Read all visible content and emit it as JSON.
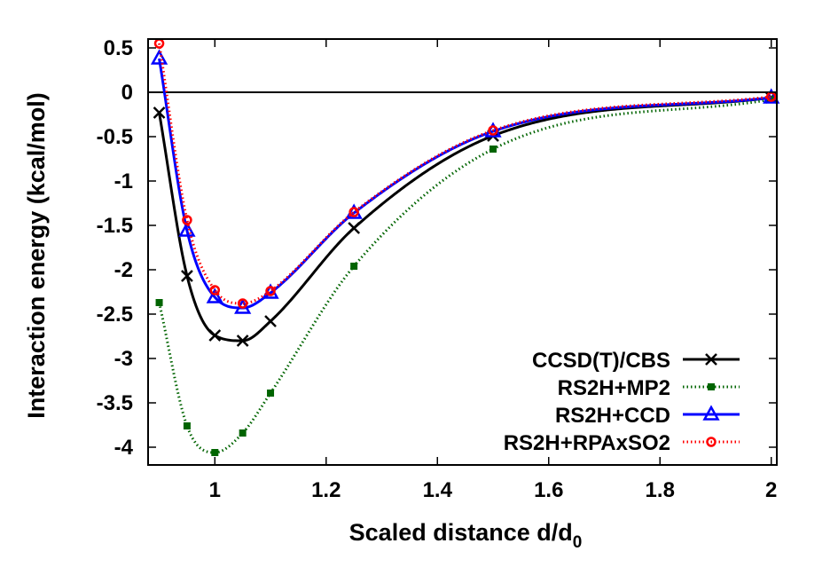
{
  "chart_data": {
    "type": "line",
    "xlabel": "Scaled distance d/d",
    "xlabel_subscript": "0",
    "ylabel": "Interaction energy (kcal/mol)",
    "xlim": [
      0.88,
      2.01
    ],
    "ylim": [
      -4.2,
      0.6
    ],
    "x_ticks": [
      1,
      1.2,
      1.4,
      1.6,
      1.8,
      2
    ],
    "x_tick_labels": [
      "1",
      "1.2",
      "1.4",
      "1.6",
      "1.8",
      "2"
    ],
    "y_ticks": [
      0.5,
      0,
      -0.5,
      -1,
      -1.5,
      -2,
      -2.5,
      -3,
      -3.5,
      -4
    ],
    "y_tick_labels": [
      "0.5",
      "0",
      "-0.5",
      "-1",
      "-1.5",
      "-2",
      "-2.5",
      "-3",
      "-3.5",
      "-4"
    ],
    "grid": false,
    "legend_position": "bottom-right",
    "zero_line": true,
    "series": [
      {
        "name": "CCSD(T)/CBS",
        "color": "#000000",
        "line_style": "solid",
        "marker": "cross",
        "x": [
          0.9,
          0.95,
          1.0,
          1.05,
          1.1,
          1.25,
          1.5,
          2.0
        ],
        "y": [
          -0.23,
          -2.07,
          -2.74,
          -2.8,
          -2.58,
          -1.53,
          -0.49,
          -0.06
        ]
      },
      {
        "name": "RS2H+MP2",
        "color": "#006400",
        "line_style": "dotted",
        "marker": "square",
        "x": [
          0.9,
          0.95,
          1.0,
          1.05,
          1.1,
          1.25,
          1.5,
          2.0
        ],
        "y": [
          -2.37,
          -3.76,
          -4.06,
          -3.84,
          -3.39,
          -1.96,
          -0.64,
          -0.08
        ]
      },
      {
        "name": "RS2H+CCD",
        "color": "#0000ff",
        "line_style": "solid",
        "marker": "triangle",
        "x": [
          0.9,
          0.95,
          1.0,
          1.05,
          1.1,
          1.25,
          1.5,
          2.0
        ],
        "y": [
          0.38,
          -1.56,
          -2.31,
          -2.43,
          -2.26,
          -1.36,
          -0.44,
          -0.06
        ]
      },
      {
        "name": "RS2H+RPAxSO2",
        "color": "#ff0000",
        "line_style": "dotted",
        "marker": "circle",
        "x": [
          0.9,
          0.95,
          1.0,
          1.05,
          1.1,
          1.25,
          1.5,
          2.0
        ],
        "y": [
          0.55,
          -1.44,
          -2.23,
          -2.38,
          -2.24,
          -1.35,
          -0.43,
          -0.05
        ]
      }
    ]
  }
}
